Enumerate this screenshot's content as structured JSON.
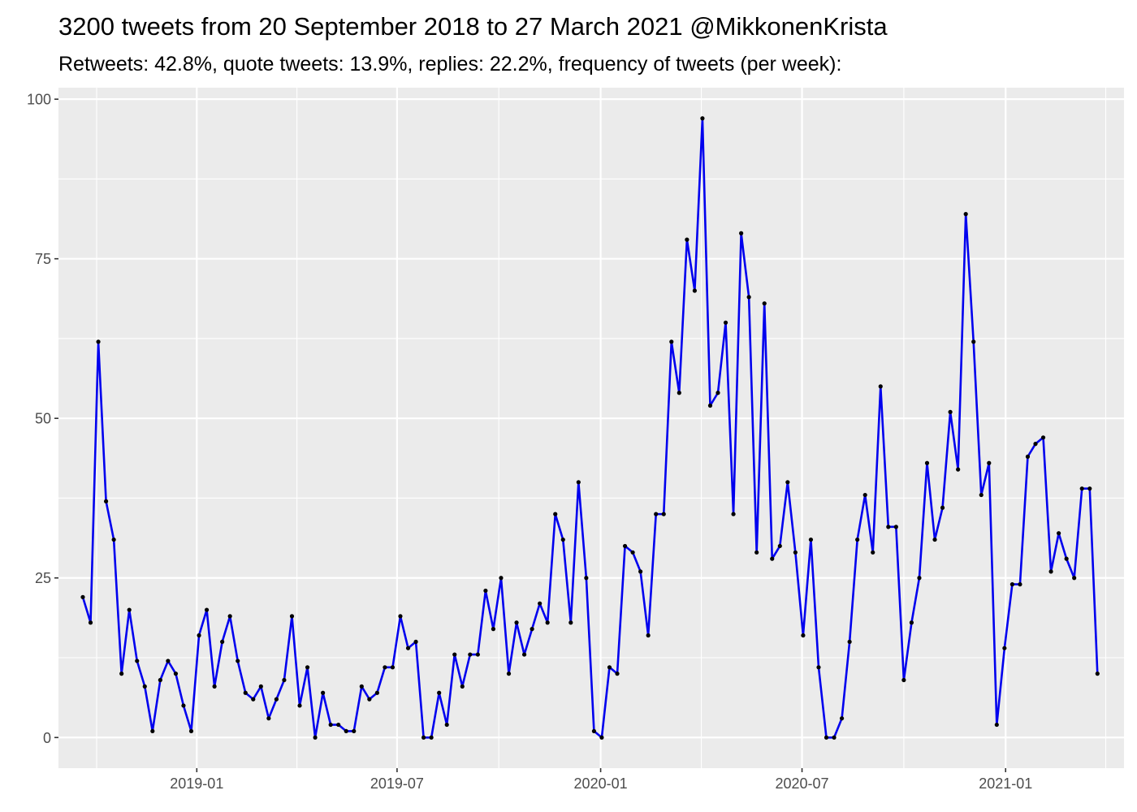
{
  "chart_data": {
    "type": "line",
    "title": "3200 tweets from 20 September 2018 to 27 March 2021 @MikkonenKrista",
    "subtitle": "Retweets: 42.8%, quote tweets: 13.9%, replies: 22.2%, frequency of tweets (per week):",
    "xlabel": "",
    "ylabel": "",
    "start_date": "2018-09-20",
    "x_tick_labels": [
      "2019-01",
      "2019-07",
      "2020-01",
      "2020-07",
      "2021-01"
    ],
    "x_ticks": [
      "2019-01-01",
      "2019-07-01",
      "2020-01-01",
      "2020-07-01",
      "2021-01-01"
    ],
    "y_ticks": [
      0,
      25,
      50,
      75,
      100
    ],
    "y_tick_labels": [
      "0",
      "25",
      "50",
      "75",
      "100"
    ],
    "ylim": [
      -4.8,
      101.8
    ],
    "xlim": [
      "2018-08-29",
      "2021-04-18"
    ],
    "grid": true,
    "legend": "none",
    "colors": {
      "line": "#0000ee",
      "point": "#000000",
      "panel": "#ebebeb",
      "grid": "#ffffff"
    },
    "series": [
      {
        "values": [
          22,
          18,
          62,
          37,
          31,
          10,
          20,
          12,
          8,
          1,
          9,
          12,
          10,
          5,
          1,
          16,
          20,
          8,
          15,
          19,
          12,
          7,
          6,
          8,
          3,
          6,
          9,
          19,
          5,
          11,
          0,
          7,
          2,
          2,
          1,
          1,
          8,
          6,
          7,
          11,
          11,
          19,
          14,
          15,
          0,
          0,
          7,
          2,
          13,
          8,
          13,
          13,
          23,
          17,
          25,
          10,
          18,
          13,
          17,
          21,
          18,
          35,
          31,
          18,
          40,
          25,
          1,
          0,
          11,
          10,
          30,
          29,
          26,
          16,
          35,
          35,
          62,
          54,
          78,
          70,
          97,
          52,
          54,
          65,
          35,
          79,
          69,
          29,
          68,
          28,
          30,
          40,
          29,
          16,
          31,
          11,
          0,
          0,
          3,
          15,
          31,
          38,
          29,
          55,
          33,
          33,
          9,
          18,
          25,
          43,
          31,
          36,
          51,
          42,
          82,
          62,
          38,
          43,
          2,
          14,
          24,
          24,
          44,
          46,
          47,
          26,
          32,
          28,
          25,
          39,
          39,
          10
        ]
      }
    ]
  }
}
